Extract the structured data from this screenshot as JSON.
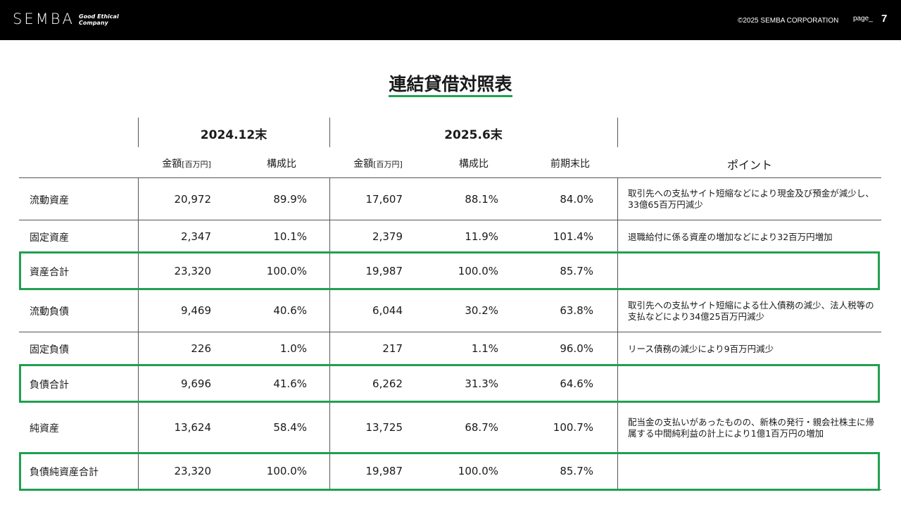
{
  "header": {
    "logo": "SEMBA",
    "tagline_1": "Good Ethical",
    "tagline_2": "Company",
    "copyright": "©2025 SEMBA CORPORATION",
    "page_label": "page_",
    "page_number": "7"
  },
  "title": "連結貸借対照表",
  "periods": [
    "2024.12末",
    "2025.6末"
  ],
  "columns": {
    "amount": "金額",
    "amount_unit": "[百万円]",
    "ratio": "構成比",
    "vs_prev": "前期末比",
    "point": "ポイント"
  },
  "rows": [
    {
      "label": "流動資産",
      "a2024": "20,972",
      "r2024": "89.9%",
      "a2025": "17,607",
      "r2025": "88.1%",
      "vs": "84.0%",
      "point": "取引先への支払サイト短縮などにより現金及び預金が減少し、33億65百万円減少"
    },
    {
      "label": "固定資産",
      "a2024": "2,347",
      "r2024": "10.1%",
      "a2025": "2,379",
      "r2025": "11.9%",
      "vs": "101.4%",
      "point": "退職給付に係る資産の増加などにより32百万円増加"
    },
    {
      "label": "資産合計",
      "a2024": "23,320",
      "r2024": "100.0%",
      "a2025": "19,987",
      "r2025": "100.0%",
      "vs": "85.7%",
      "point": ""
    },
    {
      "label": "流動負債",
      "a2024": "9,469",
      "r2024": "40.6%",
      "a2025": "6,044",
      "r2025": "30.2%",
      "vs": "63.8%",
      "point": "取引先への支払サイト短縮による仕入債務の減少、法人税等の支払などにより34億25百万円減少"
    },
    {
      "label": "固定負債",
      "a2024": "226",
      "r2024": "1.0%",
      "a2025": "217",
      "r2025": "1.1%",
      "vs": "96.0%",
      "point": "リース債務の減少により9百万円減少"
    },
    {
      "label": "負債合計",
      "a2024": "9,696",
      "r2024": "41.6%",
      "a2025": "6,262",
      "r2025": "31.3%",
      "vs": "64.6%",
      "point": ""
    },
    {
      "label": "純資産",
      "a2024": "13,624",
      "r2024": "58.4%",
      "a2025": "13,725",
      "r2025": "68.7%",
      "vs": "100.7%",
      "point": "配当金の支払いがあったものの、新株の発行・親会社株主に帰属する中間純利益の計上により1億1百万円の増加"
    },
    {
      "label": "負債純資産合計",
      "a2024": "23,320",
      "r2024": "100.0%",
      "a2025": "19,987",
      "r2025": "100.0%",
      "vs": "85.7%",
      "point": ""
    }
  ],
  "colors": {
    "accent": "#20a050",
    "header_bg": "#000000"
  }
}
